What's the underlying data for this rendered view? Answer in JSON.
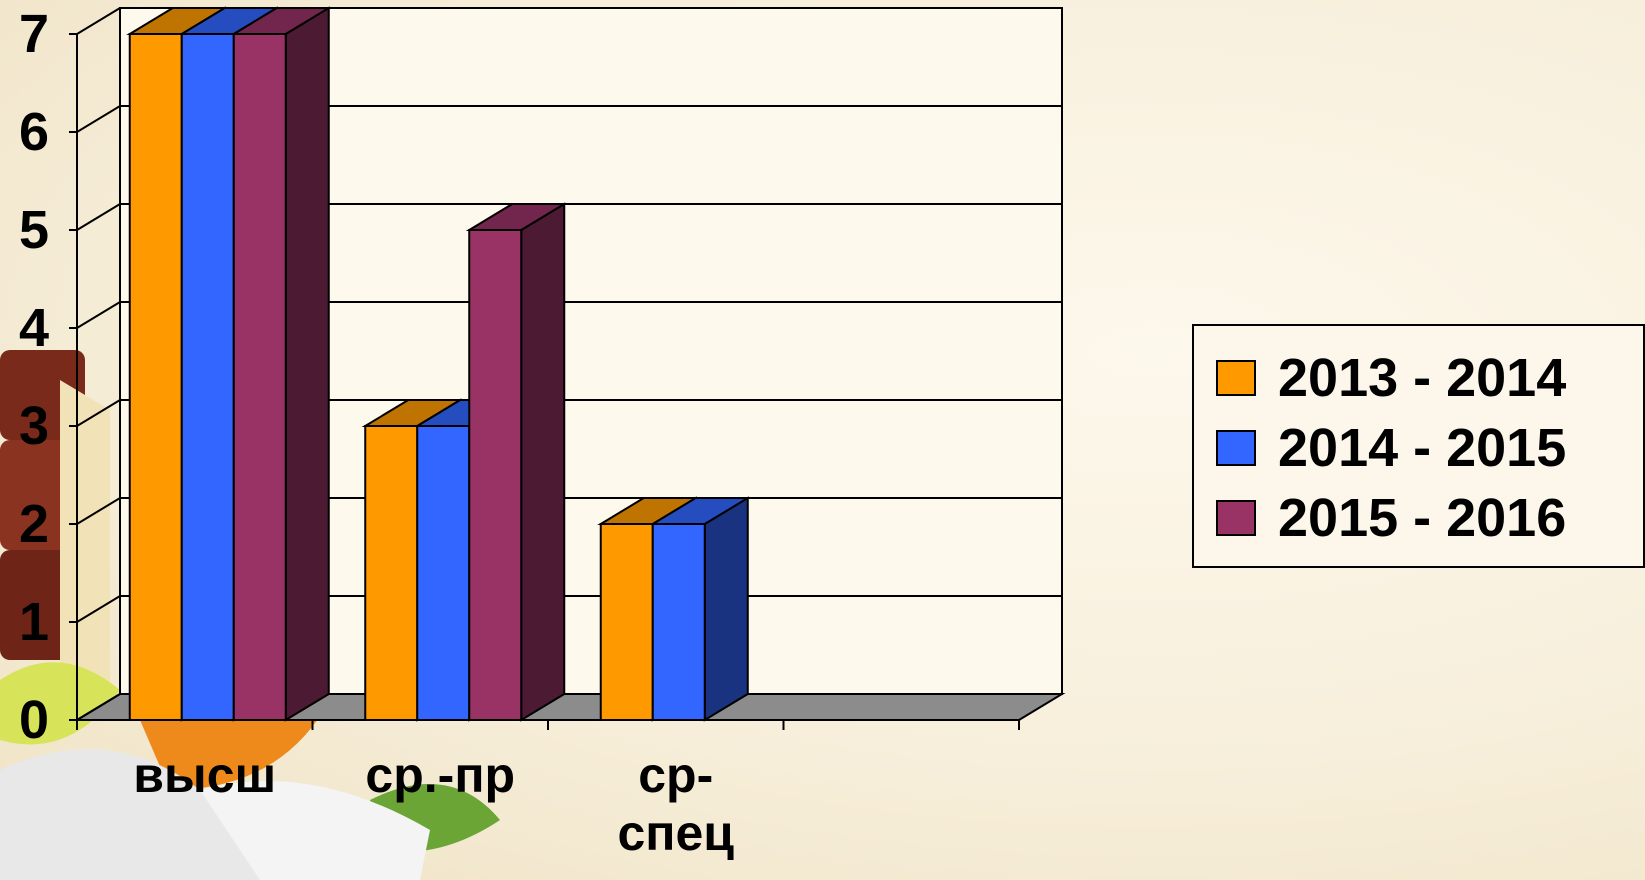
{
  "chart_data": {
    "type": "bar",
    "categories": [
      "высш",
      "ср.-пр",
      "ср-\nспец"
    ],
    "series": [
      {
        "name": "2013 - 2014",
        "values": [
          7,
          3,
          2
        ],
        "color": "#FF9900"
      },
      {
        "name": "2014 - 2015",
        "values": [
          7,
          3,
          2
        ],
        "color": "#3366FF"
      },
      {
        "name": "2015 - 2016",
        "values": [
          7,
          5,
          0
        ],
        "color": "#993366"
      }
    ],
    "ylim": [
      0,
      7
    ],
    "yticks": [
      "0",
      "1",
      "2",
      "3",
      "4",
      "5",
      "6",
      "7"
    ],
    "grid": true,
    "legend": "right",
    "title": "",
    "xlabel": "",
    "ylabel": ""
  }
}
